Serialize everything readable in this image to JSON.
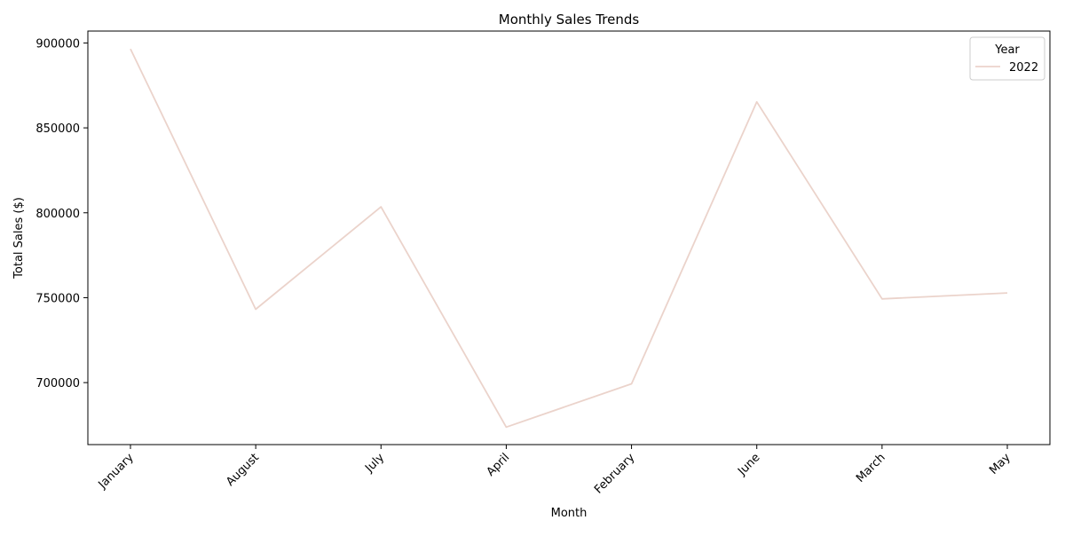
{
  "chart_data": {
    "type": "line",
    "title": "Monthly Sales Trends",
    "xlabel": "Month",
    "ylabel": "Total Sales ($)",
    "categories": [
      "January",
      "August",
      "July",
      "April",
      "February",
      "June",
      "March",
      "May"
    ],
    "series": [
      {
        "name": "2022",
        "color": "#ebd3cb",
        "values": [
          896500,
          743200,
          803500,
          673800,
          699300,
          865300,
          749300,
          752800
        ]
      }
    ],
    "ylim": [
      663500,
      907000
    ],
    "yticks": [
      700000,
      750000,
      800000,
      850000,
      900000
    ],
    "grid": false,
    "legend": {
      "title": "Year",
      "placement": "top-right"
    },
    "xtick_rotation": 45
  }
}
